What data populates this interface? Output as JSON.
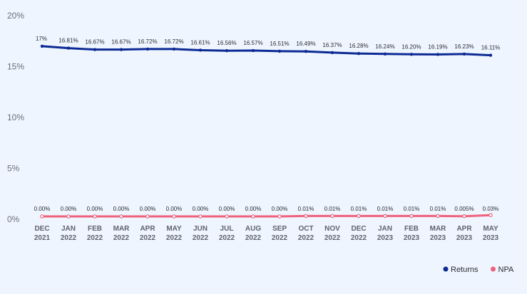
{
  "chart_data": {
    "type": "line",
    "title": "",
    "xlabel": "",
    "ylabel": "",
    "ylim": [
      0,
      20
    ],
    "y_ticks": [
      "0%",
      "5%",
      "10%",
      "15%",
      "20%"
    ],
    "grid": false,
    "legend": "bottom-right",
    "categories": [
      [
        "DEC",
        "2021"
      ],
      [
        "JAN",
        "2022"
      ],
      [
        "FEB",
        "2022"
      ],
      [
        "MAR",
        "2022"
      ],
      [
        "APR",
        "2022"
      ],
      [
        "MAY",
        "2022"
      ],
      [
        "JUN",
        "2022"
      ],
      [
        "JUL",
        "2022"
      ],
      [
        "AUG",
        "2022"
      ],
      [
        "SEP",
        "2022"
      ],
      [
        "OCT",
        "2022"
      ],
      [
        "NOV",
        "2022"
      ],
      [
        "DEC",
        "2022"
      ],
      [
        "JAN",
        "2023"
      ],
      [
        "FEB",
        "2023"
      ],
      [
        "MAR",
        "2023"
      ],
      [
        "APR",
        "2023"
      ],
      [
        "MAY",
        "2023"
      ]
    ],
    "series": [
      {
        "name": "Returns",
        "color": "#0d2a94",
        "values": [
          17,
          16.81,
          16.67,
          16.67,
          16.72,
          16.72,
          16.61,
          16.56,
          16.57,
          16.51,
          16.49,
          16.37,
          16.28,
          16.24,
          16.2,
          16.19,
          16.23,
          16.11
        ],
        "labels": [
          "17%",
          "16.81%",
          "16.67%",
          "16.67%",
          "16.72%",
          "16.72%",
          "16.61%",
          "16.56%",
          "16.57%",
          "16.51%",
          "16.49%",
          "16.37%",
          "16.28%",
          "16.24%",
          "16.20%",
          "16.19%",
          "16.23%",
          "16.11%"
        ]
      },
      {
        "name": "NPA",
        "color": "#f0607c",
        "values": [
          0,
          0,
          0,
          0,
          0,
          0,
          0,
          0,
          0,
          0,
          0.01,
          0.01,
          0.01,
          0.01,
          0.01,
          0.01,
          0.005,
          0.03
        ],
        "labels": [
          "0.00%",
          "0.00%",
          "0.00%",
          "0.00%",
          "0.00%",
          "0.00%",
          "0.00%",
          "0.00%",
          "0.00%",
          "0.00%",
          "0.01%",
          "0.01%",
          "0.01%",
          "0.01%",
          "0.01%",
          "0.01%",
          "0.005%",
          "0.03%"
        ]
      }
    ]
  }
}
